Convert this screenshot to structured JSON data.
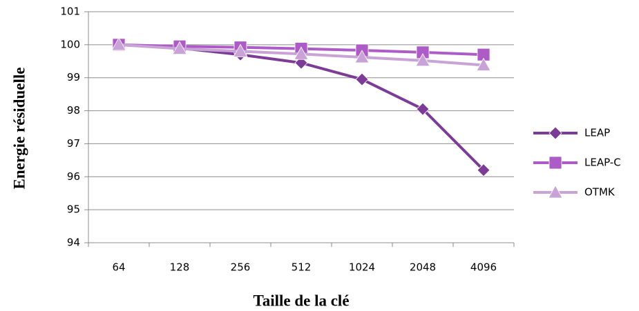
{
  "chart_data": {
    "type": "line",
    "x_label": "Taille de la clé",
    "y_label": "Energie résiduelle",
    "categories": [
      "64",
      "128",
      "256",
      "512",
      "1024",
      "2048",
      "4096"
    ],
    "series": [
      {
        "name": "LEAP",
        "color": "#7b3b96",
        "marker": "diamond",
        "values": [
          100,
          99.9,
          99.7,
          99.45,
          98.95,
          98.05,
          96.2
        ]
      },
      {
        "name": "LEAP-C",
        "color": "#ad5cc7",
        "marker": "square",
        "values": [
          100,
          99.95,
          99.92,
          99.88,
          99.83,
          99.77,
          99.7
        ]
      },
      {
        "name": "OTMK",
        "color": "#c9a3d8",
        "marker": "triangle",
        "values": [
          100,
          99.88,
          99.8,
          99.72,
          99.62,
          99.52,
          99.38
        ]
      }
    ],
    "ylim": [
      94,
      101
    ],
    "yticks": [
      94,
      95,
      96,
      97,
      98,
      99,
      100,
      101
    ],
    "grid": true,
    "legend": "right"
  }
}
